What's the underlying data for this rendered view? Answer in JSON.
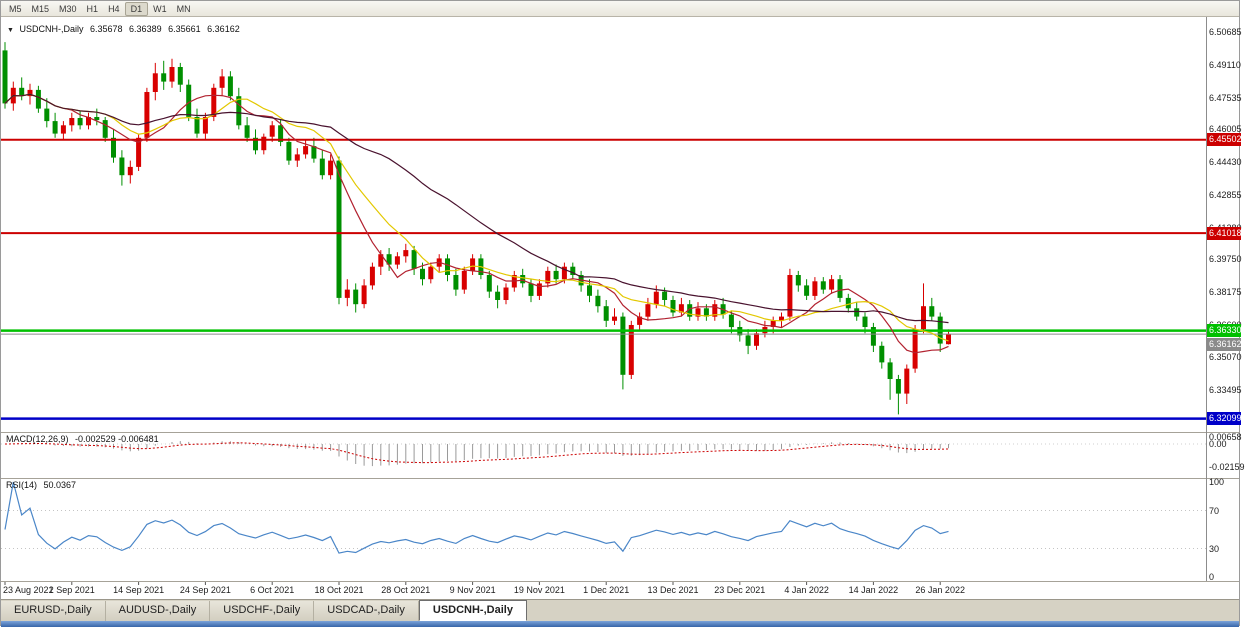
{
  "toolbar": {
    "timeframes": [
      "M5",
      "M15",
      "M30",
      "H1",
      "H4",
      "D1",
      "W1",
      "MN"
    ],
    "active": "D1"
  },
  "quote": {
    "symbol": "USDCNH-,Daily",
    "open": "6.35678",
    "high": "6.36389",
    "low": "6.35661",
    "close": "6.36162"
  },
  "indicators": {
    "macd": {
      "label": "MACD(12,26,9)",
      "values": "-0.002529 -0.006481"
    },
    "rsi": {
      "label": "RSI(14)",
      "value": "50.0367"
    }
  },
  "axes": {
    "price": [
      "6.50685",
      "6.49110",
      "6.47535",
      "6.46005",
      "6.44430",
      "6.42855",
      "6.41280",
      "6.39750",
      "6.38175",
      "6.36600",
      "6.35070",
      "6.33495"
    ],
    "macd": [
      {
        "text": "0.00658",
        "v": 0.00658
      },
      {
        "text": "0.00",
        "v": 0
      },
      {
        "text": "-0.02159",
        "v": -0.02159
      }
    ],
    "rsi": [
      {
        "text": "100",
        "v": 100
      },
      {
        "text": "70",
        "v": 70
      },
      {
        "text": "30",
        "v": 30
      },
      {
        "text": "0",
        "v": 0
      }
    ],
    "dates": [
      {
        "label": "23 Aug 2021",
        "idx": 0
      },
      {
        "label": "2 Sep 2021",
        "idx": 8
      },
      {
        "label": "14 Sep 2021",
        "idx": 16
      },
      {
        "label": "24 Sep 2021",
        "idx": 24
      },
      {
        "label": "6 Oct 2021",
        "idx": 32
      },
      {
        "label": "18 Oct 2021",
        "idx": 40
      },
      {
        "label": "28 Oct 2021",
        "idx": 48
      },
      {
        "label": "9 Nov 2021",
        "idx": 56
      },
      {
        "label": "19 Nov 2021",
        "idx": 64
      },
      {
        "label": "1 Dec 2021",
        "idx": 72
      },
      {
        "label": "13 Dec 2021",
        "idx": 80
      },
      {
        "label": "23 Dec 2021",
        "idx": 88
      },
      {
        "label": "4 Jan 2022",
        "idx": 96
      },
      {
        "label": "14 Jan 2022",
        "idx": 104
      },
      {
        "label": "26 Jan 2022",
        "idx": 112
      }
    ]
  },
  "chart_data": {
    "type": "candlestick",
    "symbol": "USDCNH",
    "timeframe": "Daily",
    "bull_color": "#D80000",
    "bear_color": "#008F00",
    "ma": [
      {
        "period": 8,
        "color": "#B22230"
      },
      {
        "period": 13,
        "color": "#E3C800"
      },
      {
        "period": 30,
        "color": "#49122E"
      }
    ],
    "hlines": [
      {
        "price": 6.45502,
        "text": "6.45502",
        "color": "#CC0000",
        "width": 2,
        "type": "resistance"
      },
      {
        "price": 6.41018,
        "text": "6.41018",
        "color": "#CC0000",
        "width": 2,
        "type": "resistance"
      },
      {
        "price": 6.3633,
        "text": "6.36330",
        "color": "#00C000",
        "width": 2.5,
        "type": "support"
      },
      {
        "price": 6.36162,
        "text": "6.36162",
        "color": "#8A8A8A",
        "width": 1,
        "type": "bid"
      },
      {
        "price": 6.32099,
        "text": "6.32099",
        "color": "#0000C8",
        "width": 2.5,
        "type": "support"
      }
    ],
    "candles": [
      [
        6.498,
        6.502,
        6.47,
        6.4725
      ],
      [
        6.4725,
        6.483,
        6.469,
        6.48
      ],
      [
        6.48,
        6.485,
        6.474,
        6.476
      ],
      [
        6.476,
        6.482,
        6.472,
        6.479
      ],
      [
        6.479,
        6.481,
        6.468,
        6.47
      ],
      [
        6.47,
        6.475,
        6.461,
        6.464
      ],
      [
        6.464,
        6.468,
        6.456,
        6.458
      ],
      [
        6.458,
        6.464,
        6.455,
        6.462
      ],
      [
        6.462,
        6.468,
        6.459,
        6.4655
      ],
      [
        6.4655,
        6.469,
        6.46,
        6.462
      ],
      [
        6.462,
        6.468,
        6.46,
        6.466
      ],
      [
        6.466,
        6.47,
        6.462,
        6.4645
      ],
      [
        6.4645,
        6.466,
        6.454,
        6.456
      ],
      [
        6.456,
        6.46,
        6.444,
        6.4465
      ],
      [
        6.4465,
        6.45,
        6.433,
        6.438
      ],
      [
        6.438,
        6.445,
        6.434,
        6.442
      ],
      [
        6.442,
        6.458,
        6.44,
        6.456
      ],
      [
        6.456,
        6.48,
        6.454,
        6.478
      ],
      [
        6.478,
        6.492,
        6.474,
        6.487
      ],
      [
        6.487,
        6.493,
        6.479,
        6.483
      ],
      [
        6.483,
        6.494,
        6.48,
        6.49
      ],
      [
        6.49,
        6.492,
        6.478,
        6.4815
      ],
      [
        6.4815,
        6.484,
        6.464,
        6.466
      ],
      [
        6.466,
        6.47,
        6.456,
        6.458
      ],
      [
        6.458,
        6.468,
        6.455,
        6.466
      ],
      [
        6.466,
        6.482,
        6.464,
        6.48
      ],
      [
        6.48,
        6.489,
        6.476,
        6.4855
      ],
      [
        6.4855,
        6.488,
        6.474,
        6.476
      ],
      [
        6.476,
        6.48,
        6.46,
        6.462
      ],
      [
        6.462,
        6.466,
        6.454,
        6.456
      ],
      [
        6.456,
        6.46,
        6.448,
        6.45
      ],
      [
        6.45,
        6.458,
        6.448,
        6.4565
      ],
      [
        6.4565,
        6.464,
        6.454,
        6.462
      ],
      [
        6.462,
        6.465,
        6.452,
        6.454
      ],
      [
        6.454,
        6.456,
        6.443,
        6.445
      ],
      [
        6.445,
        6.451,
        6.442,
        6.448
      ],
      [
        6.448,
        6.455,
        6.446,
        6.452
      ],
      [
        6.452,
        6.456,
        6.444,
        6.446
      ],
      [
        6.446,
        6.45,
        6.436,
        6.438
      ],
      [
        6.438,
        6.448,
        6.436,
        6.445
      ],
      [
        6.445,
        6.447,
        6.376,
        6.379
      ],
      [
        6.379,
        6.388,
        6.375,
        6.383
      ],
      [
        6.383,
        6.386,
        6.372,
        6.376
      ],
      [
        6.376,
        6.388,
        6.374,
        6.385
      ],
      [
        6.385,
        6.396,
        6.383,
        6.394
      ],
      [
        6.394,
        6.402,
        6.39,
        6.4
      ],
      [
        6.4,
        6.403,
        6.392,
        6.395
      ],
      [
        6.395,
        6.401,
        6.393,
        6.399
      ],
      [
        6.399,
        6.405,
        6.396,
        6.402
      ],
      [
        6.402,
        6.404,
        6.39,
        6.393
      ],
      [
        6.393,
        6.396,
        6.385,
        6.388
      ],
      [
        6.388,
        6.396,
        6.386,
        6.394
      ],
      [
        6.394,
        6.4,
        6.391,
        6.398
      ],
      [
        6.398,
        6.4,
        6.387,
        6.39
      ],
      [
        6.39,
        6.393,
        6.38,
        6.383
      ],
      [
        6.383,
        6.394,
        6.381,
        6.392
      ],
      [
        6.392,
        6.4,
        6.39,
        6.398
      ],
      [
        6.398,
        6.4,
        6.388,
        6.39
      ],
      [
        6.39,
        6.392,
        6.379,
        6.382
      ],
      [
        6.382,
        6.385,
        6.374,
        6.378
      ],
      [
        6.378,
        6.386,
        6.376,
        6.384
      ],
      [
        6.384,
        6.392,
        6.382,
        6.39
      ],
      [
        6.39,
        6.393,
        6.384,
        6.386
      ],
      [
        6.386,
        6.388,
        6.377,
        6.38
      ],
      [
        6.38,
        6.388,
        6.378,
        6.386
      ],
      [
        6.386,
        6.394,
        6.384,
        6.392
      ],
      [
        6.392,
        6.395,
        6.386,
        6.388
      ],
      [
        6.388,
        6.396,
        6.386,
        6.394
      ],
      [
        6.394,
        6.396,
        6.388,
        6.39
      ],
      [
        6.39,
        6.392,
        6.382,
        6.385
      ],
      [
        6.385,
        6.388,
        6.377,
        6.38
      ],
      [
        6.38,
        6.383,
        6.372,
        6.375
      ],
      [
        6.375,
        6.378,
        6.365,
        6.368
      ],
      [
        6.368,
        6.374,
        6.366,
        6.37
      ],
      [
        6.37,
        6.372,
        6.335,
        6.342
      ],
      [
        6.342,
        6.368,
        6.34,
        6.366
      ],
      [
        6.366,
        6.372,
        6.363,
        6.37
      ],
      [
        6.37,
        6.379,
        6.368,
        6.376
      ],
      [
        6.376,
        6.385,
        6.374,
        6.382
      ],
      [
        6.382,
        6.384,
        6.375,
        6.378
      ],
      [
        6.378,
        6.38,
        6.37,
        6.372
      ],
      [
        6.372,
        6.379,
        6.37,
        6.376
      ],
      [
        6.376,
        6.378,
        6.368,
        6.37
      ],
      [
        6.37,
        6.377,
        6.368,
        6.374
      ],
      [
        6.374,
        6.376,
        6.368,
        6.37
      ],
      [
        6.37,
        6.378,
        6.368,
        6.376
      ],
      [
        6.376,
        6.379,
        6.369,
        6.371
      ],
      [
        6.371,
        6.373,
        6.362,
        6.365
      ],
      [
        6.365,
        6.368,
        6.358,
        6.361
      ],
      [
        6.361,
        6.364,
        6.352,
        6.356
      ],
      [
        6.356,
        6.364,
        6.354,
        6.362
      ],
      [
        6.362,
        6.368,
        6.36,
        6.365
      ],
      [
        6.365,
        6.37,
        6.362,
        6.368
      ],
      [
        6.368,
        6.372,
        6.365,
        6.37
      ],
      [
        6.37,
        6.393,
        6.368,
        6.39
      ],
      [
        6.39,
        6.392,
        6.382,
        6.385
      ],
      [
        6.385,
        6.388,
        6.378,
        6.38
      ],
      [
        6.38,
        6.389,
        6.378,
        6.387
      ],
      [
        6.387,
        6.389,
        6.381,
        6.383
      ],
      [
        6.383,
        6.39,
        6.381,
        6.388
      ],
      [
        6.388,
        6.39,
        6.377,
        6.379
      ],
      [
        6.379,
        6.381,
        6.372,
        6.374
      ],
      [
        6.374,
        6.377,
        6.368,
        6.37
      ],
      [
        6.37,
        6.372,
        6.362,
        6.365
      ],
      [
        6.365,
        6.367,
        6.353,
        6.356
      ],
      [
        6.356,
        6.358,
        6.345,
        6.348
      ],
      [
        6.348,
        6.35,
        6.33,
        6.34
      ],
      [
        6.34,
        6.342,
        6.323,
        6.333
      ],
      [
        6.333,
        6.347,
        6.328,
        6.345
      ],
      [
        6.345,
        6.366,
        6.343,
        6.364
      ],
      [
        6.364,
        6.386,
        6.362,
        6.375
      ],
      [
        6.375,
        6.379,
        6.368,
        6.37
      ],
      [
        6.37,
        6.372,
        6.353,
        6.357
      ],
      [
        6.35678,
        6.36389,
        6.35661,
        6.36162
      ]
    ]
  },
  "tabbar": {
    "tabs": [
      {
        "label": "EURUSD-,Daily",
        "active": false
      },
      {
        "label": "AUDUSD-,Daily",
        "active": false
      },
      {
        "label": "USDCHF-,Daily",
        "active": false
      },
      {
        "label": "USDCAD-,Daily",
        "active": false
      },
      {
        "label": "USDCNH-,Daily",
        "active": true
      }
    ]
  }
}
